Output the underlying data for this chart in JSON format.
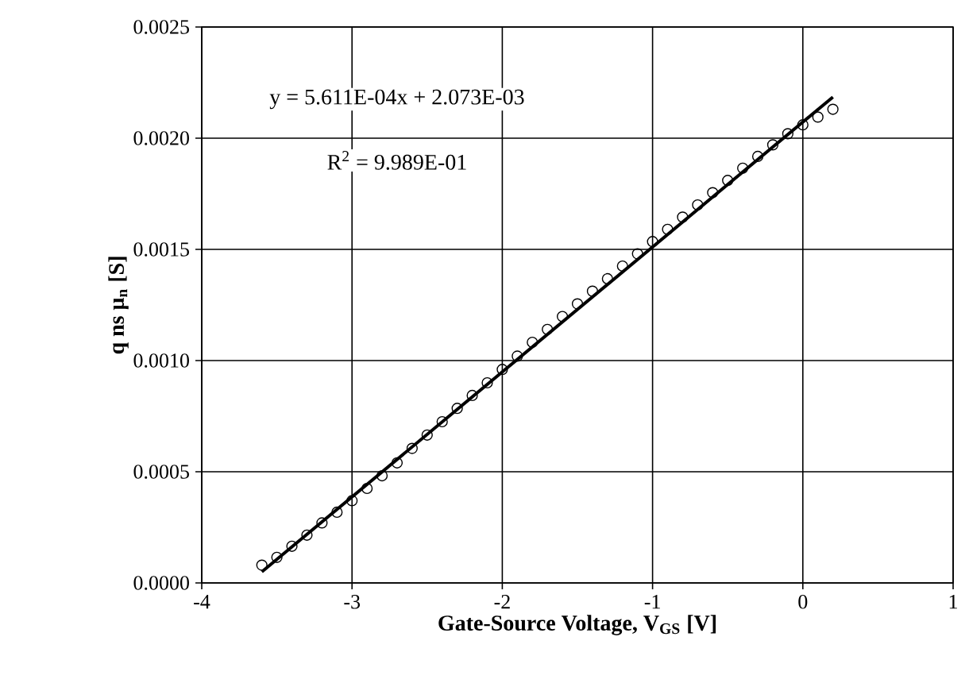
{
  "chart_data": {
    "type": "scatter",
    "xlabel": "Gate-Source Voltage, V$_{GS}$ [V]",
    "ylabel": "q ns μ$_{n}$ [S]",
    "annotations": [
      "y = 5.611E-04x + 2.073E-03",
      "R$^{2}$ = 9.989E-01"
    ],
    "xlim": [
      -4,
      1
    ],
    "xticks": [
      -4,
      -3,
      -2,
      -1,
      0,
      1
    ],
    "ylim": [
      0,
      0.0025
    ],
    "yticks": [
      {
        "value": 0,
        "label": "0.0000"
      },
      {
        "value": 0.0005,
        "label": "0.0005"
      },
      {
        "value": 0.001,
        "label": "0.0010"
      },
      {
        "value": 0.0015,
        "label": "0.0015"
      },
      {
        "value": 0.002,
        "label": "0.0020"
      },
      {
        "value": 0.0025,
        "label": "0.0025"
      }
    ],
    "grid": true,
    "series": [
      {
        "marker": "circle",
        "color": "#000000",
        "x": [
          -3.6,
          -3.5,
          -3.4,
          -3.3,
          -3.2,
          -3.1,
          -3.0,
          -2.9,
          -2.8,
          -2.7,
          -2.6,
          -2.5,
          -2.4,
          -2.3,
          -2.2,
          -2.1,
          -2.0,
          -1.9,
          -1.8,
          -1.7,
          -1.6,
          -1.5,
          -1.4,
          -1.3,
          -1.2,
          -1.1,
          -1.0,
          -0.9,
          -0.8,
          -0.7,
          -0.6,
          -0.5,
          -0.4,
          -0.3,
          -0.2,
          -0.1,
          0.0,
          0.1,
          0.2
        ],
        "values": [
          8e-05,
          0.000115,
          0.000165,
          0.000215,
          0.00027,
          0.000318,
          0.00037,
          0.000425,
          0.000482,
          0.00054,
          0.000605,
          0.000665,
          0.000725,
          0.000785,
          0.000843,
          0.0009,
          0.00096,
          0.00102,
          0.001082,
          0.00114,
          0.001198,
          0.001255,
          0.001312,
          0.001368,
          0.001425,
          0.00148,
          0.001535,
          0.00159,
          0.001645,
          0.0017,
          0.001755,
          0.00181,
          0.001865,
          0.001918,
          0.00197,
          0.00202,
          0.00206,
          0.002095,
          0.00213
        ]
      },
      {
        "type": "line",
        "marker": "none",
        "color": "#000000",
        "x": [
          -3.6,
          0.2
        ],
        "values": [
          5e-05,
          0.002185
        ]
      }
    ]
  }
}
